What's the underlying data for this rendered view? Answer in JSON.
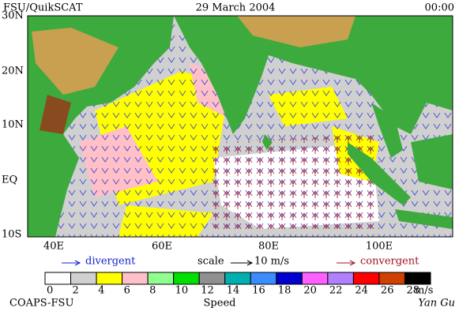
{
  "header": {
    "source": "FSU/QuikSCAT",
    "date": "29 March 2004",
    "time": "00:00"
  },
  "map": {
    "lat_labels": [
      "30N",
      "20N",
      "10N",
      "EQ",
      "10S"
    ],
    "lon_labels": [
      "40E",
      "60E",
      "80E",
      "100E"
    ]
  },
  "key": {
    "divergent": "divergent",
    "scale": "scale",
    "scale_value": "10 m/s",
    "convergent": "convergent"
  },
  "colorbar": {
    "title": "Speed",
    "unit": "m/s",
    "ticks": [
      0,
      2,
      4,
      6,
      8,
      10,
      12,
      14,
      16,
      18,
      20,
      22,
      24,
      26,
      28
    ],
    "colors": [
      "#ffffff",
      "#d0d0d0",
      "#ffff00",
      "#ffc0c8",
      "#90ff90",
      "#00e000",
      "#909090",
      "#00b0b0",
      "#3a8cff",
      "#0000d0",
      "#ff60ff",
      "#b080ff",
      "#ff0000",
      "#d04000",
      "#000000"
    ]
  },
  "footer": {
    "org": "COAPS-FSU",
    "author": "Yan Gu"
  }
}
